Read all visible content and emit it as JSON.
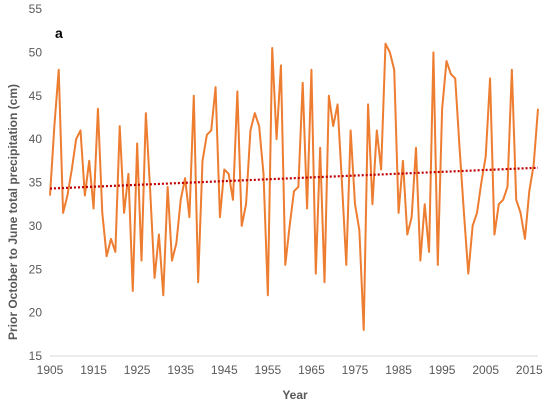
{
  "chart_data": {
    "type": "line",
    "panel_label": "a",
    "xlabel": "Year",
    "ylabel": "Prior October to June total precipitation (cm)",
    "xlim": [
      1905,
      2017
    ],
    "ylim": [
      15,
      55
    ],
    "x_ticks": [
      1905,
      1915,
      1925,
      1935,
      1945,
      1955,
      1965,
      1975,
      1985,
      1995,
      2005,
      2015
    ],
    "y_ticks": [
      15,
      20,
      25,
      30,
      35,
      40,
      45,
      50,
      55
    ],
    "grid": false,
    "legend": "none",
    "series": [
      {
        "color": "#ED7D31",
        "style": "solid",
        "x": [
          1905,
          1906,
          1907,
          1908,
          1909,
          1910,
          1911,
          1912,
          1913,
          1914,
          1915,
          1916,
          1917,
          1918,
          1919,
          1920,
          1921,
          1922,
          1923,
          1924,
          1925,
          1926,
          1927,
          1928,
          1929,
          1930,
          1931,
          1932,
          1933,
          1934,
          1935,
          1936,
          1937,
          1938,
          1939,
          1940,
          1941,
          1942,
          1943,
          1944,
          1945,
          1946,
          1947,
          1948,
          1949,
          1950,
          1951,
          1952,
          1953,
          1954,
          1955,
          1956,
          1957,
          1958,
          1959,
          1960,
          1961,
          1962,
          1963,
          1964,
          1965,
          1966,
          1967,
          1968,
          1969,
          1970,
          1971,
          1972,
          1973,
          1974,
          1975,
          1976,
          1977,
          1978,
          1979,
          1980,
          1981,
          1982,
          1983,
          1984,
          1985,
          1986,
          1987,
          1988,
          1989,
          1990,
          1991,
          1992,
          1993,
          1994,
          1995,
          1996,
          1997,
          1998,
          1999,
          2000,
          2001,
          2002,
          2003,
          2004,
          2005,
          2006,
          2007,
          2008,
          2009,
          2010,
          2011,
          2012,
          2013,
          2014,
          2015,
          2016,
          2017
        ],
        "y": [
          33.5,
          41.5,
          48.0,
          31.5,
          33.5,
          36.5,
          40.0,
          41.0,
          33.5,
          37.5,
          32.0,
          43.5,
          31.5,
          26.5,
          28.5,
          27.0,
          41.5,
          31.5,
          36.0,
          22.5,
          39.5,
          26.0,
          43.0,
          34.0,
          24.0,
          29.0,
          22.0,
          34.5,
          26.0,
          28.0,
          33.0,
          35.5,
          31.0,
          45.0,
          23.5,
          37.5,
          40.5,
          41.0,
          46.0,
          31.0,
          36.5,
          36.0,
          33.0,
          45.5,
          30.0,
          32.5,
          41.0,
          43.0,
          41.5,
          36.0,
          22.0,
          50.5,
          40.0,
          48.5,
          25.5,
          30.0,
          34.0,
          34.5,
          46.5,
          32.0,
          48.0,
          24.5,
          39.0,
          23.5,
          45.0,
          41.5,
          44.0,
          35.0,
          25.5,
          41.0,
          32.5,
          29.5,
          18.0,
          44.0,
          32.5,
          41.0,
          36.5,
          51.0,
          50.0,
          48.0,
          31.5,
          37.5,
          29.0,
          31.0,
          39.0,
          26.0,
          32.5,
          27.0,
          50.0,
          25.5,
          43.5,
          49.0,
          47.5,
          47.0,
          39.0,
          31.5,
          24.5,
          30.0,
          31.5,
          35.0,
          38.0,
          47.0,
          29.0,
          32.5,
          33.0,
          34.5,
          48.0,
          33.0,
          31.5,
          28.5,
          34.0,
          37.0,
          43.5
        ]
      },
      {
        "color": "#C00000",
        "style": "dotted",
        "x": [
          1905,
          2017
        ],
        "y": [
          34.3,
          36.7
        ]
      }
    ]
  }
}
